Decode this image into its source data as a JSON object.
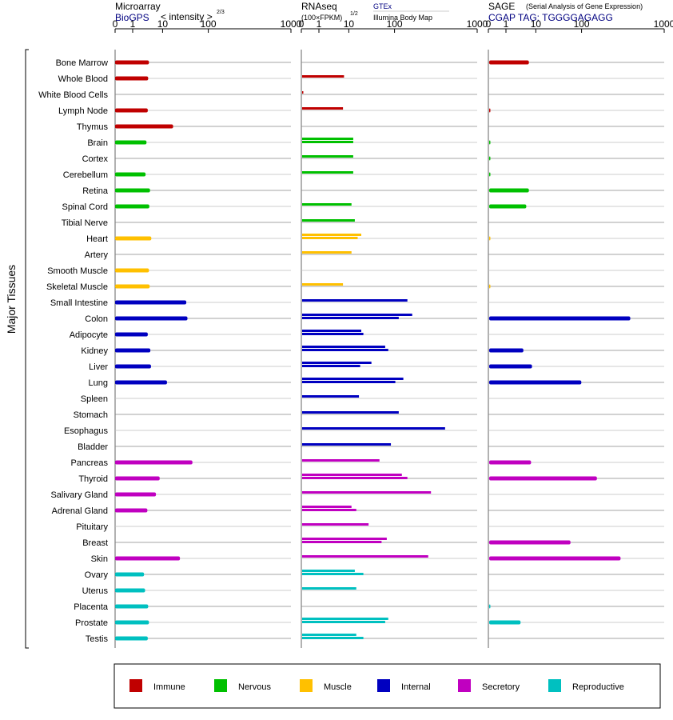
{
  "colors": {
    "immune": "#c00000",
    "nervous": "#00c000",
    "muscle": "#ffc000",
    "internal": "#0000c0",
    "secretory": "#c000c0",
    "reproductive": "#00c0c0",
    "link": "#000080"
  },
  "panels": {
    "microarray": {
      "title": "Microarray",
      "source_link": "BioGPS",
      "scale_label": "< intensity >",
      "scale_exponent": "2/3"
    },
    "rnaseq": {
      "title": "RNAseq",
      "scale_label": "(100×FPKM)",
      "scale_exponent": "1/2",
      "source_link": "GTEx",
      "source_sub": "Illumina Body Map"
    },
    "sage": {
      "title": "SAGE",
      "subtitle": "(Serial Analysis of Gene Expression)",
      "tag_label": "CGAP TAG: TGGGGAGAGG"
    }
  },
  "group_label": "Major Tissues",
  "chart_data": {
    "type": "bar",
    "orientation": "horizontal",
    "axis_ticks": [
      "0",
      "1",
      "10",
      "100",
      "1000"
    ],
    "tissues": [
      {
        "name": "Bone Marrow",
        "group": "immune",
        "microarray": 3.5,
        "rnaseq": [],
        "sage": 5.5
      },
      {
        "name": "Whole Blood",
        "group": "immune",
        "microarray": 3.3,
        "rnaseq": [
          6.5
        ],
        "sage": null
      },
      {
        "name": "White Blood Cells",
        "group": "immune",
        "microarray": null,
        "rnaseq": [
          0.01
        ],
        "sage": null
      },
      {
        "name": "Lymph Node",
        "group": "immune",
        "microarray": 3.2,
        "rnaseq": [
          6
        ],
        "sage": 0.01
      },
      {
        "name": "Thymus",
        "group": "immune",
        "microarray": 17,
        "rnaseq": [],
        "sage": null
      },
      {
        "name": "Brain",
        "group": "nervous",
        "microarray": 2.9,
        "rnaseq": [
          12,
          12
        ],
        "sage": 0.01
      },
      {
        "name": "Cortex",
        "group": "nervous",
        "microarray": null,
        "rnaseq": [
          12
        ],
        "sage": 0.01
      },
      {
        "name": "Cerebellum",
        "group": "nervous",
        "microarray": 2.7,
        "rnaseq": [
          12
        ],
        "sage": 0.01
      },
      {
        "name": "Retina",
        "group": "nervous",
        "microarray": 3.8,
        "rnaseq": [],
        "sage": 5.5
      },
      {
        "name": "Spinal Cord",
        "group": "nervous",
        "microarray": 3.6,
        "rnaseq": [
          11
        ],
        "sage": 4.5
      },
      {
        "name": "Tibial Nerve",
        "group": "nervous",
        "microarray": null,
        "rnaseq": [
          13
        ],
        "sage": null
      },
      {
        "name": "Heart",
        "group": "muscle",
        "microarray": 4.2,
        "rnaseq": [
          18,
          15
        ],
        "sage": 0.01
      },
      {
        "name": "Artery",
        "group": "muscle",
        "microarray": null,
        "rnaseq": [
          11
        ],
        "sage": null
      },
      {
        "name": "Smooth Muscle",
        "group": "muscle",
        "microarray": 3.5,
        "rnaseq": [],
        "sage": null
      },
      {
        "name": "Skeletal Muscle",
        "group": "muscle",
        "microarray": 3.7,
        "rnaseq": [
          6
        ],
        "sage": 0.01
      },
      {
        "name": "Small Intestine",
        "group": "internal",
        "microarray": 33,
        "rnaseq": [
          140
        ],
        "sage": null
      },
      {
        "name": "Colon",
        "group": "internal",
        "microarray": 35,
        "rnaseq": [
          160,
          110
        ],
        "sage": 380
      },
      {
        "name": "Adipocyte",
        "group": "internal",
        "microarray": 3.2,
        "rnaseq": [
          18,
          20
        ],
        "sage": null
      },
      {
        "name": "Kidney",
        "group": "internal",
        "microarray": 3.9,
        "rnaseq": [
          60,
          70
        ],
        "sage": 3.6
      },
      {
        "name": "Liver",
        "group": "internal",
        "microarray": 4.1,
        "rnaseq": [
          30,
          17
        ],
        "sage": 7
      },
      {
        "name": "Lung",
        "group": "internal",
        "microarray": 12.5,
        "rnaseq": [
          125,
          100
        ],
        "sage": 95
      },
      {
        "name": "Spleen",
        "group": "internal",
        "microarray": null,
        "rnaseq": [
          16
        ],
        "sage": null
      },
      {
        "name": "Stomach",
        "group": "internal",
        "microarray": null,
        "rnaseq": [
          110
        ],
        "sage": null
      },
      {
        "name": "Esophagus",
        "group": "internal",
        "microarray": null,
        "rnaseq": [
          400
        ],
        "sage": null
      },
      {
        "name": "Bladder",
        "group": "internal",
        "microarray": null,
        "rnaseq": [
          80
        ],
        "sage": null
      },
      {
        "name": "Pancreas",
        "group": "secretory",
        "microarray": 45,
        "rnaseq": [
          45
        ],
        "sage": 6.5
      },
      {
        "name": "Thyroid",
        "group": "secretory",
        "microarray": 8,
        "rnaseq": [
          120,
          140
        ],
        "sage": 150
      },
      {
        "name": "Salivary Gland",
        "group": "secretory",
        "microarray": 6,
        "rnaseq": [
          270
        ],
        "sage": null
      },
      {
        "name": "Adrenal Gland",
        "group": "secretory",
        "microarray": 3.1,
        "rnaseq": [
          11,
          14
        ],
        "sage": null
      },
      {
        "name": "Pituitary",
        "group": "secretory",
        "microarray": null,
        "rnaseq": [
          26
        ],
        "sage": null
      },
      {
        "name": "Breast",
        "group": "secretory",
        "microarray": null,
        "rnaseq": [
          65,
          50
        ],
        "sage": 55
      },
      {
        "name": "Skin",
        "group": "secretory",
        "microarray": 24,
        "rnaseq": [
          250
        ],
        "sage": 290
      },
      {
        "name": "Ovary",
        "group": "reproductive",
        "microarray": 2.4,
        "rnaseq": [
          13,
          20
        ],
        "sage": null
      },
      {
        "name": "Uterus",
        "group": "reproductive",
        "microarray": 2.6,
        "rnaseq": [
          14
        ],
        "sage": null
      },
      {
        "name": "Placenta",
        "group": "reproductive",
        "microarray": 3.3,
        "rnaseq": [],
        "sage": 0.01
      },
      {
        "name": "Prostate",
        "group": "reproductive",
        "microarray": 3.5,
        "rnaseq": [
          70,
          60
        ],
        "sage": 2.9
      },
      {
        "name": "Testis",
        "group": "reproductive",
        "microarray": 3.2,
        "rnaseq": [
          14,
          20
        ],
        "sage": null
      }
    ]
  },
  "legend": [
    {
      "key": "immune",
      "label": "Immune"
    },
    {
      "key": "nervous",
      "label": "Nervous"
    },
    {
      "key": "muscle",
      "label": "Muscle"
    },
    {
      "key": "internal",
      "label": "Internal"
    },
    {
      "key": "secretory",
      "label": "Secretory"
    },
    {
      "key": "reproductive",
      "label": "Reproductive"
    }
  ]
}
